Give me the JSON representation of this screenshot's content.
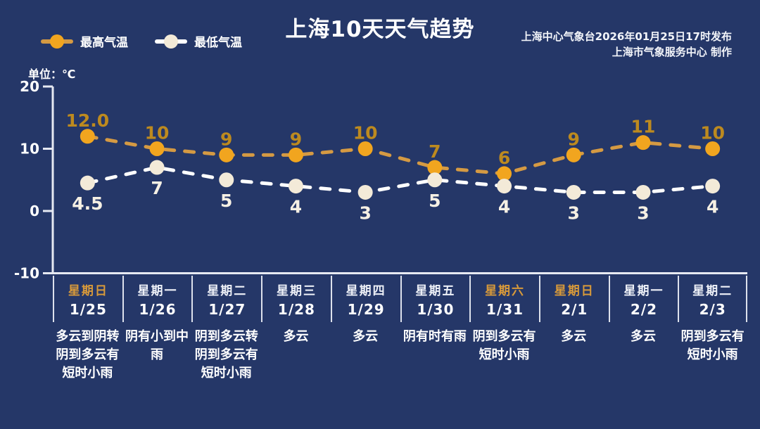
{
  "header": {
    "title": "上海10天天气趋势",
    "source_line1": "上海中心气象台2026年01月25日17时发布",
    "source_line2": "上海市气象服务中心  制作"
  },
  "legend": {
    "max_label": "最高气温",
    "min_label": "最低气温"
  },
  "unit_label": "单位：℃",
  "colors": {
    "background": "#253768",
    "max_line": "#d59a43",
    "max_point": "#f1a51f",
    "max_value_text": "#bd8a1f",
    "min_line": "#ffffff",
    "min_point": "#f3ead8",
    "min_value_text": "#f6f0e4",
    "axis": "#e6e9f2",
    "weekend_text": "#d89a3a"
  },
  "chart_data": {
    "type": "line",
    "x": [
      "1/25",
      "1/26",
      "1/27",
      "1/28",
      "1/29",
      "1/30",
      "1/31",
      "2/1",
      "2/2",
      "2/3"
    ],
    "series": [
      {
        "name": "最高气温",
        "values": [
          12.0,
          10,
          9,
          9,
          10,
          7,
          6,
          9,
          11,
          10
        ],
        "labels": [
          "12.0",
          "10",
          "9",
          "9",
          "10",
          "7",
          "6",
          "9",
          "11",
          "10"
        ]
      },
      {
        "name": "最低气温",
        "values": [
          4.5,
          7,
          5,
          4,
          3,
          5,
          4,
          3,
          3,
          4
        ],
        "labels": [
          "4.5",
          "7",
          "5",
          "4",
          "3",
          "5",
          "4",
          "3",
          "3",
          "4"
        ]
      }
    ],
    "ylabel": "单位：℃",
    "ylim": [
      -10,
      20
    ],
    "yticks": [
      {
        "value": 20,
        "label": "20"
      },
      {
        "value": 10,
        "label": "10"
      },
      {
        "value": 0,
        "label": "0"
      },
      {
        "value": -10,
        "label": "-10"
      }
    ],
    "grid": false,
    "legend_position": "top-left",
    "line_style": "dashed"
  },
  "days": [
    {
      "week": "星期日",
      "date": "1/25",
      "weather": "多云到阴转阴到多云有短时小雨",
      "weekend": true
    },
    {
      "week": "星期一",
      "date": "1/26",
      "weather": "阴有小到中雨",
      "weekend": false
    },
    {
      "week": "星期二",
      "date": "1/27",
      "weather": "阴到多云转阴到多云有短时小雨",
      "weekend": false
    },
    {
      "week": "星期三",
      "date": "1/28",
      "weather": "多云",
      "weekend": false
    },
    {
      "week": "星期四",
      "date": "1/29",
      "weather": "多云",
      "weekend": false
    },
    {
      "week": "星期五",
      "date": "1/30",
      "weather": "阴有时有雨",
      "weekend": false
    },
    {
      "week": "星期六",
      "date": "1/31",
      "weather": "阴到多云有短时小雨",
      "weekend": true
    },
    {
      "week": "星期日",
      "date": "2/1",
      "weather": "多云",
      "weekend": true
    },
    {
      "week": "星期一",
      "date": "2/2",
      "weather": "多云",
      "weekend": false
    },
    {
      "week": "星期二",
      "date": "2/3",
      "weather": "阴到多云有短时小雨",
      "weekend": false
    }
  ]
}
